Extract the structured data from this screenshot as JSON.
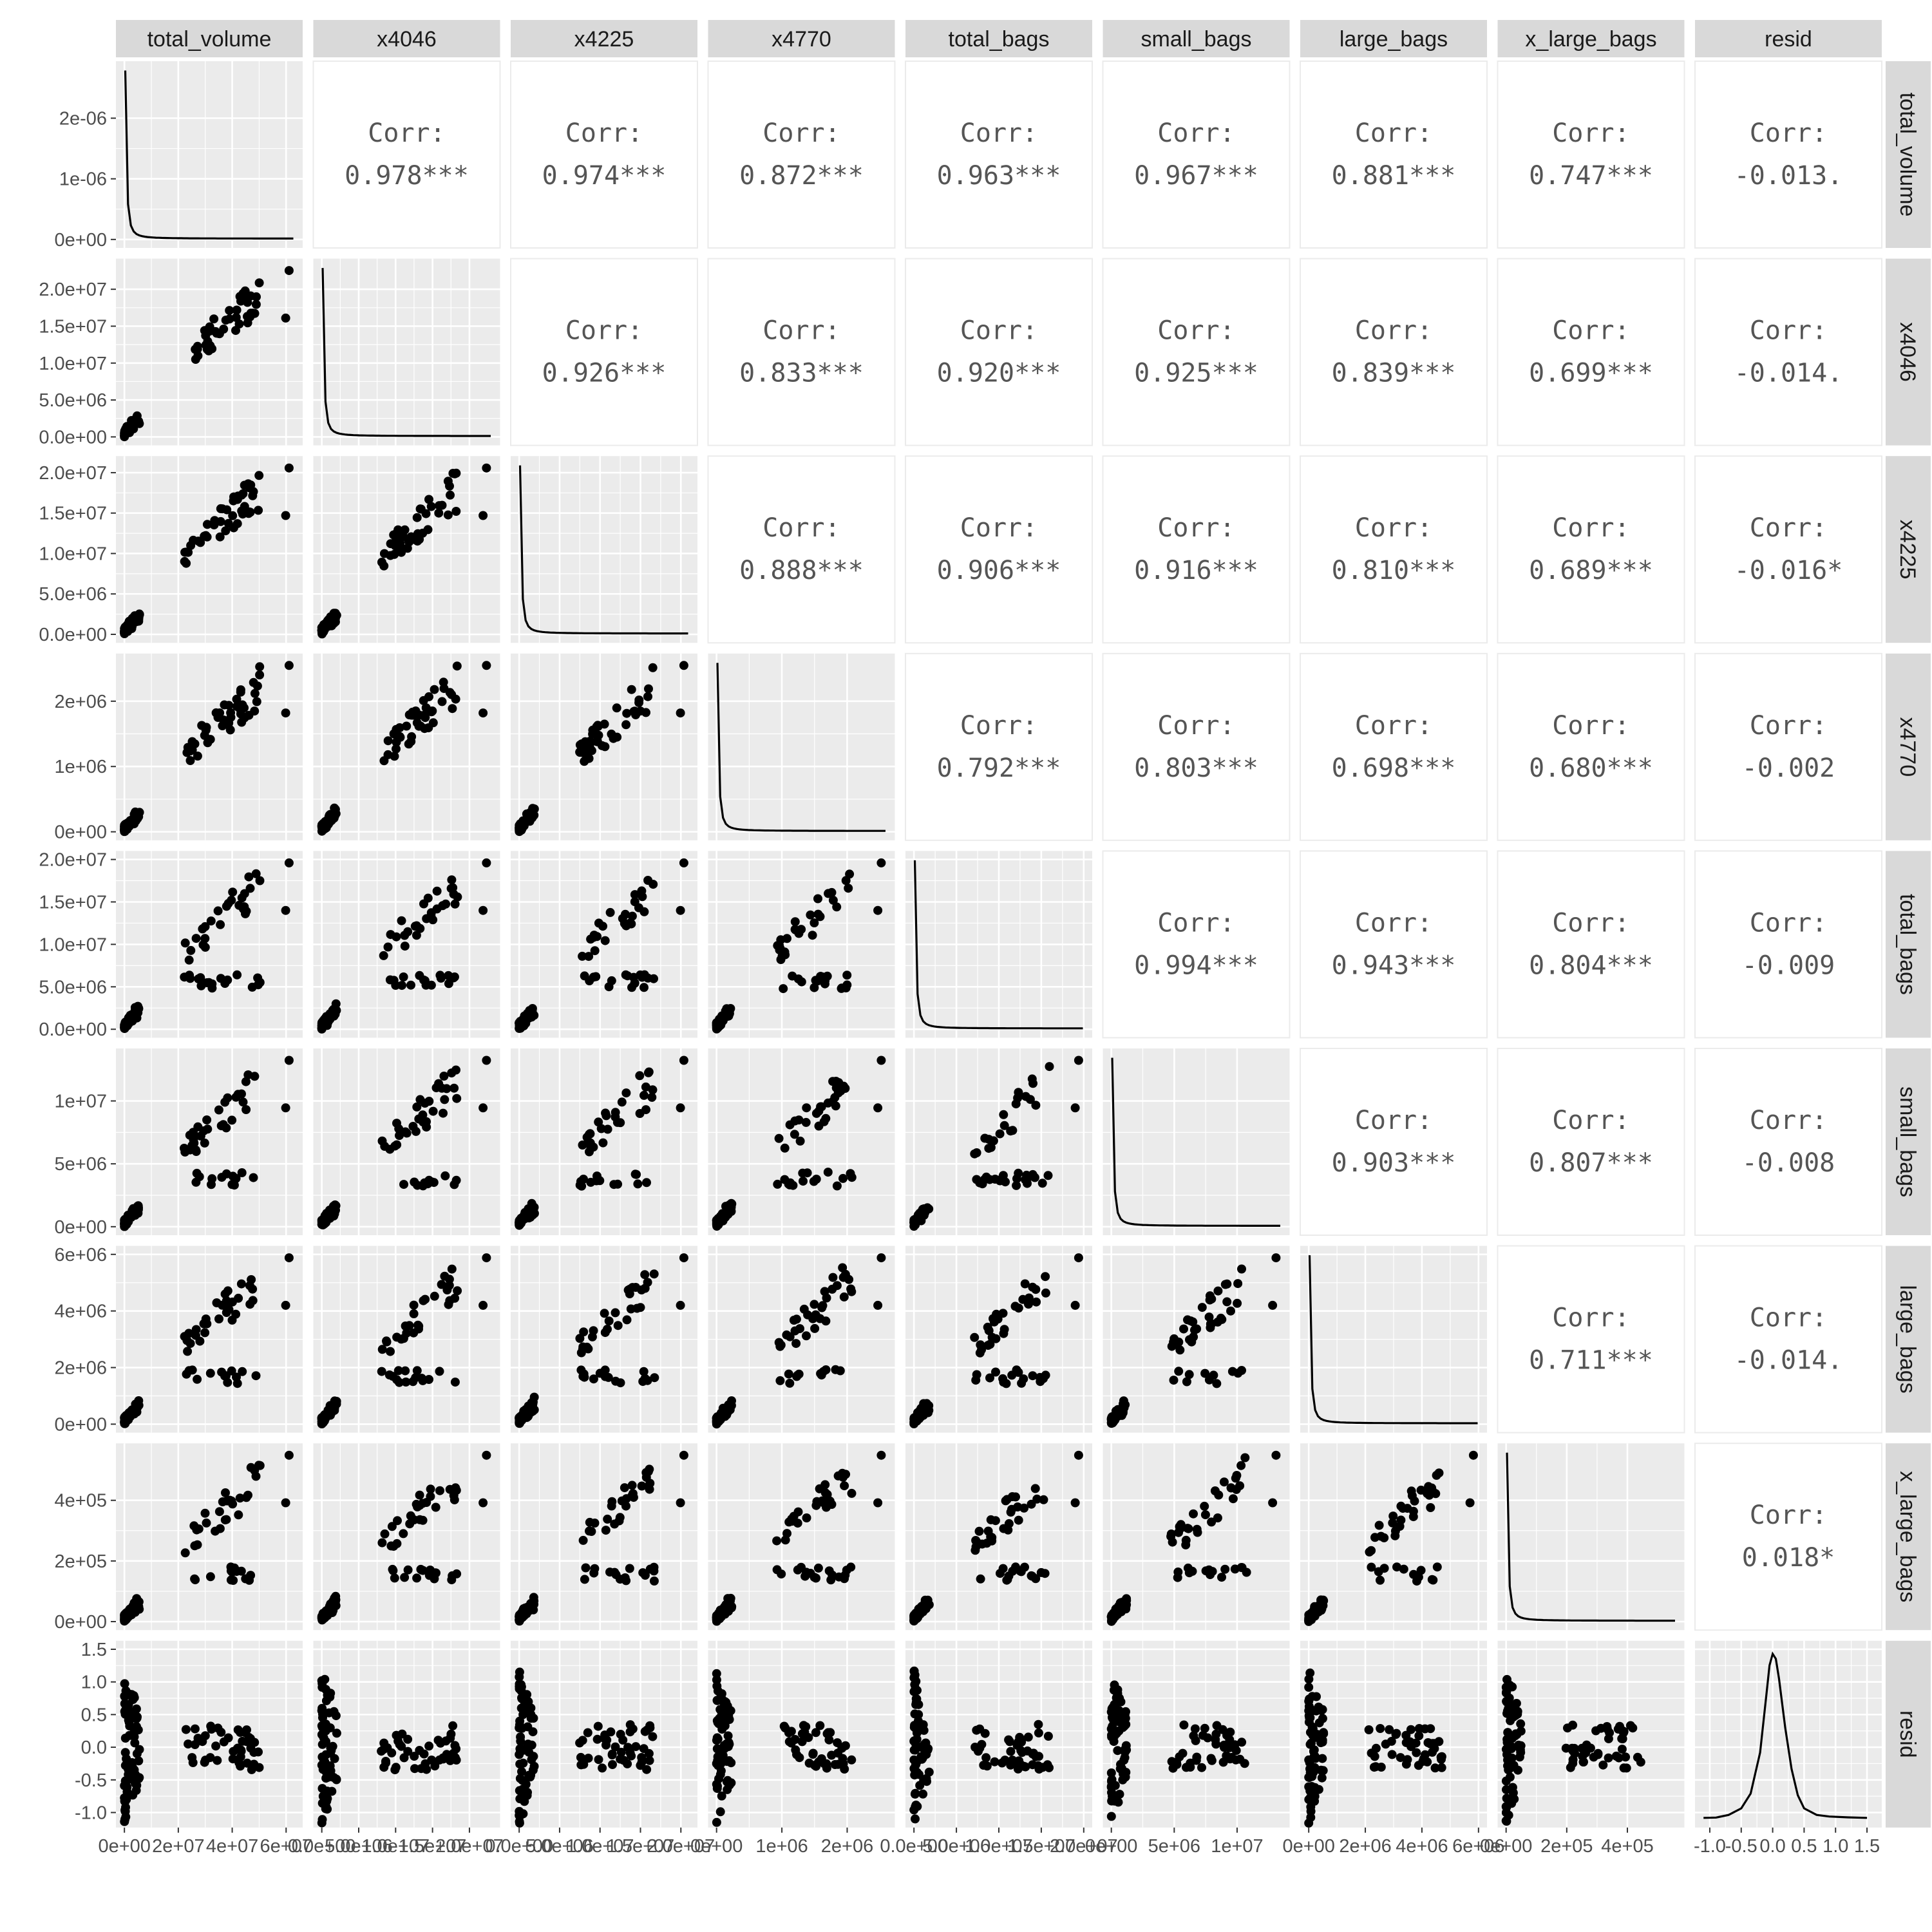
{
  "chart_data": {
    "type": "scatter",
    "chart_kind": "pairs-plot-matrix",
    "variables": [
      "total_volume",
      "x4046",
      "x4225",
      "x4770",
      "total_bags",
      "small_bags",
      "large_bags",
      "x_large_bags",
      "resid"
    ],
    "corr_label": "Corr:",
    "correlations": [
      {
        "row": "total_volume",
        "col": "x4046",
        "value": 0.978,
        "label": "0.978***"
      },
      {
        "row": "total_volume",
        "col": "x4225",
        "value": 0.974,
        "label": "0.974***"
      },
      {
        "row": "total_volume",
        "col": "x4770",
        "value": 0.872,
        "label": "0.872***"
      },
      {
        "row": "total_volume",
        "col": "total_bags",
        "value": 0.963,
        "label": "0.963***"
      },
      {
        "row": "total_volume",
        "col": "small_bags",
        "value": 0.967,
        "label": "0.967***"
      },
      {
        "row": "total_volume",
        "col": "large_bags",
        "value": 0.881,
        "label": "0.881***"
      },
      {
        "row": "total_volume",
        "col": "x_large_bags",
        "value": 0.747,
        "label": "0.747***"
      },
      {
        "row": "total_volume",
        "col": "resid",
        "value": -0.013,
        "label": "-0.013."
      },
      {
        "row": "x4046",
        "col": "x4225",
        "value": 0.926,
        "label": "0.926***"
      },
      {
        "row": "x4046",
        "col": "x4770",
        "value": 0.833,
        "label": "0.833***"
      },
      {
        "row": "x4046",
        "col": "total_bags",
        "value": 0.92,
        "label": "0.920***"
      },
      {
        "row": "x4046",
        "col": "small_bags",
        "value": 0.925,
        "label": "0.925***"
      },
      {
        "row": "x4046",
        "col": "large_bags",
        "value": 0.839,
        "label": "0.839***"
      },
      {
        "row": "x4046",
        "col": "x_large_bags",
        "value": 0.699,
        "label": "0.699***"
      },
      {
        "row": "x4046",
        "col": "resid",
        "value": -0.014,
        "label": "-0.014."
      },
      {
        "row": "x4225",
        "col": "x4770",
        "value": 0.888,
        "label": "0.888***"
      },
      {
        "row": "x4225",
        "col": "total_bags",
        "value": 0.906,
        "label": "0.906***"
      },
      {
        "row": "x4225",
        "col": "small_bags",
        "value": 0.916,
        "label": "0.916***"
      },
      {
        "row": "x4225",
        "col": "large_bags",
        "value": 0.81,
        "label": "0.810***"
      },
      {
        "row": "x4225",
        "col": "x_large_bags",
        "value": 0.689,
        "label": "0.689***"
      },
      {
        "row": "x4225",
        "col": "resid",
        "value": -0.016,
        "label": "-0.016*"
      },
      {
        "row": "x4770",
        "col": "total_bags",
        "value": 0.792,
        "label": "0.792***"
      },
      {
        "row": "x4770",
        "col": "small_bags",
        "value": 0.803,
        "label": "0.803***"
      },
      {
        "row": "x4770",
        "col": "large_bags",
        "value": 0.698,
        "label": "0.698***"
      },
      {
        "row": "x4770",
        "col": "x_large_bags",
        "value": 0.68,
        "label": "0.680***"
      },
      {
        "row": "x4770",
        "col": "resid",
        "value": -0.002,
        "label": "-0.002"
      },
      {
        "row": "total_bags",
        "col": "small_bags",
        "value": 0.994,
        "label": "0.994***"
      },
      {
        "row": "total_bags",
        "col": "large_bags",
        "value": 0.943,
        "label": "0.943***"
      },
      {
        "row": "total_bags",
        "col": "x_large_bags",
        "value": 0.804,
        "label": "0.804***"
      },
      {
        "row": "total_bags",
        "col": "resid",
        "value": -0.009,
        "label": "-0.009"
      },
      {
        "row": "small_bags",
        "col": "large_bags",
        "value": 0.903,
        "label": "0.903***"
      },
      {
        "row": "small_bags",
        "col": "x_large_bags",
        "value": 0.807,
        "label": "0.807***"
      },
      {
        "row": "small_bags",
        "col": "resid",
        "value": -0.008,
        "label": "-0.008"
      },
      {
        "row": "large_bags",
        "col": "x_large_bags",
        "value": 0.711,
        "label": "0.711***"
      },
      {
        "row": "large_bags",
        "col": "resid",
        "value": -0.014,
        "label": "-0.014."
      },
      {
        "row": "x_large_bags",
        "col": "resid",
        "value": 0.018,
        "label": "0.018*"
      }
    ],
    "y_axes": [
      {
        "var": "total_volume",
        "range": [
          0,
          2.8e-06
        ],
        "ticks": [
          0,
          1e-06,
          2e-06
        ],
        "tick_labels": [
          "0e+00",
          "1e-06",
          "2e-06"
        ]
      },
      {
        "var": "x4046",
        "range": [
          0,
          23000000.0
        ],
        "ticks": [
          0,
          5000000.0,
          10000000.0,
          15000000.0,
          20000000.0
        ],
        "tick_labels": [
          "0.0e+00",
          "5.0e+06",
          "1.0e+07",
          "1.5e+07",
          "2.0e+07"
        ]
      },
      {
        "var": "x4225",
        "range": [
          0,
          21000000.0
        ],
        "ticks": [
          0,
          5000000.0,
          10000000.0,
          15000000.0,
          20000000.0
        ],
        "tick_labels": [
          "0.0e+00",
          "5.0e+06",
          "1.0e+07",
          "1.5e+07",
          "2.0e+07"
        ]
      },
      {
        "var": "x4770",
        "range": [
          0,
          2600000.0
        ],
        "ticks": [
          0,
          1000000.0,
          2000000.0
        ],
        "tick_labels": [
          "0e+00",
          "1e+06",
          "2e+06"
        ]
      },
      {
        "var": "total_bags",
        "range": [
          0,
          20000000.0
        ],
        "ticks": [
          0,
          5000000.0,
          10000000.0,
          15000000.0,
          20000000.0
        ],
        "tick_labels": [
          "0.0e+00",
          "5.0e+06",
          "1.0e+07",
          "1.5e+07",
          "2.0e+07"
        ]
      },
      {
        "var": "small_bags",
        "range": [
          0,
          13500000.0
        ],
        "ticks": [
          0,
          5000000.0,
          10000000.0
        ],
        "tick_labels": [
          "0e+00",
          "5e+06",
          "1e+07"
        ]
      },
      {
        "var": "large_bags",
        "range": [
          0,
          6000000.0
        ],
        "ticks": [
          0,
          2000000.0,
          4000000.0,
          6000000.0
        ],
        "tick_labels": [
          "0e+00",
          "2e+06",
          "4e+06",
          "6e+06"
        ]
      },
      {
        "var": "x_large_bags",
        "range": [
          0,
          560000.0
        ],
        "ticks": [
          0,
          200000.0,
          400000.0
        ],
        "tick_labels": [
          "0e+00",
          "2e+05",
          "4e+05"
        ]
      },
      {
        "var": "resid",
        "range": [
          -1.1,
          1.5
        ],
        "ticks": [
          -1,
          -0.5,
          0,
          0.5,
          1,
          1.5
        ],
        "tick_labels": [
          "-1.0",
          "-0.5",
          "0.0",
          "0.5",
          "1.0",
          "1.5"
        ]
      }
    ],
    "x_axes": [
      {
        "var": "total_volume",
        "range": [
          0,
          63000000.0
        ],
        "ticks": [
          0,
          20000000.0,
          40000000.0,
          60000000.0
        ],
        "tick_labels": [
          "0e+00",
          "2e+07",
          "4e+07",
          "6e+07"
        ]
      },
      {
        "var": "x4046",
        "range": [
          0,
          23000000.0
        ],
        "ticks": [
          0,
          5000000.0,
          10000000.0,
          15000000.0,
          20000000.0
        ],
        "tick_labels": [
          "0.0e+00",
          "5.0e+06",
          "1.0e+07",
          "1.5e+07",
          "2.0e+07"
        ]
      },
      {
        "var": "x4225",
        "range": [
          0,
          21000000.0
        ],
        "ticks": [
          0,
          5000000.0,
          10000000.0,
          15000000.0,
          20000000.0
        ],
        "tick_labels": [
          "0.0e+00",
          "5.0e+06",
          "1.0e+07",
          "1.5e+07",
          "2.0e+07"
        ]
      },
      {
        "var": "x4770",
        "range": [
          0,
          2600000.0
        ],
        "ticks": [
          0,
          1000000.0,
          2000000.0
        ],
        "tick_labels": [
          "0e+00",
          "1e+06",
          "2e+06"
        ]
      },
      {
        "var": "total_bags",
        "range": [
          0,
          20000000.0
        ],
        "ticks": [
          0,
          5000000.0,
          10000000.0,
          15000000.0,
          20000000.0
        ],
        "tick_labels": [
          "0.0e+00",
          "5.0e+06",
          "1.0e+07",
          "1.5e+07",
          "2.0e+07"
        ]
      },
      {
        "var": "small_bags",
        "range": [
          0,
          13500000.0
        ],
        "ticks": [
          0,
          5000000.0,
          10000000.0
        ],
        "tick_labels": [
          "0e+00",
          "5e+06",
          "1e+07"
        ]
      },
      {
        "var": "large_bags",
        "range": [
          0,
          6000000.0
        ],
        "ticks": [
          0,
          2000000.0,
          4000000.0,
          6000000.0
        ],
        "tick_labels": [
          "0e+00",
          "2e+06",
          "4e+06",
          "6e+06"
        ]
      },
      {
        "var": "x_large_bags",
        "range": [
          0,
          560000.0
        ],
        "ticks": [
          0,
          200000.0,
          400000.0
        ],
        "tick_labels": [
          "0e+00",
          "2e+05",
          "4e+05"
        ]
      },
      {
        "var": "resid",
        "range": [
          -1.1,
          1.6
        ],
        "ticks": [
          -1,
          -0.5,
          0,
          0.5,
          1,
          1.5
        ],
        "tick_labels": [
          "-1.0",
          "-0.5",
          "0.0",
          "0.5",
          "1.0",
          "1.5"
        ]
      }
    ],
    "density_resid": [
      [
        -1.1,
        0.002
      ],
      [
        -0.9,
        0.004
      ],
      [
        -0.7,
        0.02
      ],
      [
        -0.5,
        0.06
      ],
      [
        -0.35,
        0.15
      ],
      [
        -0.2,
        0.4
      ],
      [
        -0.1,
        0.75
      ],
      [
        -0.05,
        0.93
      ],
      [
        0.0,
        1.0
      ],
      [
        0.05,
        0.97
      ],
      [
        0.1,
        0.85
      ],
      [
        0.2,
        0.55
      ],
      [
        0.3,
        0.3
      ],
      [
        0.4,
        0.14
      ],
      [
        0.5,
        0.06
      ],
      [
        0.7,
        0.02
      ],
      [
        0.9,
        0.01
      ],
      [
        1.2,
        0.005
      ],
      [
        1.5,
        0.002
      ]
    ],
    "colors": {
      "panel": "#ebebeb",
      "strip": "#d9d9d9",
      "grid_major": "#ffffff",
      "point": "#000000",
      "corr_text": "#555555"
    },
    "grid": true
  }
}
